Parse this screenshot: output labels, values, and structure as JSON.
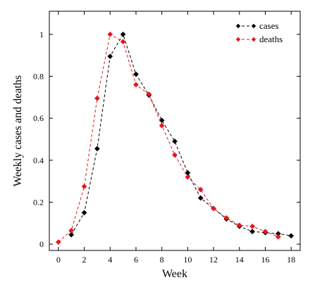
{
  "chart_data": {
    "type": "line",
    "xlabel": "Week",
    "ylabel": "Weekly cases and deaths",
    "xlim": [
      -0.7,
      18.7
    ],
    "ylim": [
      -0.03,
      1.11
    ],
    "xticks": [
      0,
      2,
      4,
      6,
      8,
      10,
      12,
      14,
      16,
      18
    ],
    "xtick_labels": [
      "0",
      "2",
      "4",
      "6",
      "8",
      "10",
      "12",
      "14",
      "16",
      "18"
    ],
    "yticks": [
      0,
      0.2,
      0.4,
      0.6,
      0.8,
      1
    ],
    "ytick_labels": [
      "0",
      "0.2",
      "0.4",
      "0.6",
      "0.8",
      "1"
    ],
    "grid": false,
    "legend_position": "top-right",
    "series": [
      {
        "name": "cases",
        "color": "#000000",
        "line_style": "dashed",
        "marker": "diamond",
        "x": [
          1,
          2,
          3,
          4,
          5,
          6,
          7,
          8,
          9,
          10,
          11,
          12,
          13,
          14,
          15,
          16,
          17,
          18
        ],
        "y": [
          0.045,
          0.15,
          0.455,
          0.895,
          1.0,
          0.81,
          0.71,
          0.59,
          0.49,
          0.34,
          0.22,
          0.17,
          0.12,
          0.085,
          0.06,
          0.055,
          0.05,
          0.04
        ]
      },
      {
        "name": "deaths",
        "color": "#e8161c",
        "line_style": "dashed",
        "marker": "diamond",
        "x": [
          0,
          1,
          2,
          3,
          4,
          5,
          6,
          7,
          8,
          9,
          10,
          11,
          12,
          13,
          14,
          15,
          16,
          17
        ],
        "y": [
          0.01,
          0.065,
          0.275,
          0.695,
          1.0,
          0.965,
          0.76,
          0.715,
          0.565,
          0.425,
          0.32,
          0.26,
          0.17,
          0.125,
          0.09,
          0.085,
          0.06,
          0.035
        ]
      }
    ]
  }
}
